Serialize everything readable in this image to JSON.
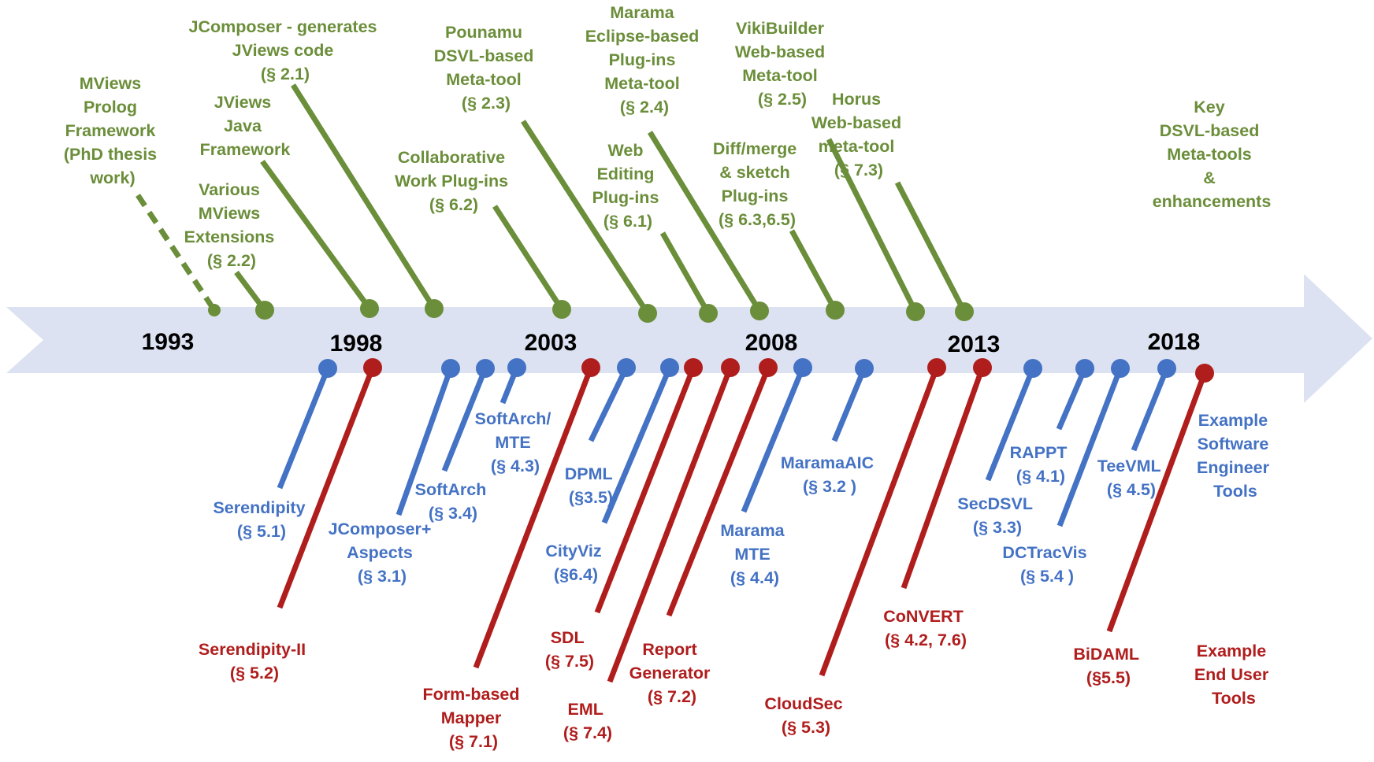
{
  "colors": {
    "green": "#6b8e3a",
    "blue": "#4472c4",
    "red": "#b01d1d",
    "arrow": "#dce2f1"
  },
  "years": [
    "1993",
    "1998",
    "2003",
    "2008",
    "2013",
    "2018"
  ],
  "green": [
    [
      "MViews",
      "Prolog",
      "Framework",
      "(PhD thesis",
      "work)"
    ],
    [
      "Various",
      "MViews",
      "Extensions",
      "(§ 2.2)"
    ],
    [
      "JViews",
      "Java",
      "Framework"
    ],
    [
      "JComposer - generates",
      "JViews code",
      "(§ 2.1)"
    ],
    [
      "Collaborative",
      "Work Plug-ins",
      "(§ 6.2)"
    ],
    [
      "Pounamu",
      "DSVL-based",
      "Meta-tool",
      "(§ 2.3)"
    ],
    [
      "Web",
      "Editing",
      "Plug-ins",
      "(§ 6.1)"
    ],
    [
      "Marama",
      "Eclipse-based",
      "Plug-ins",
      "Meta-tool",
      "(§ 2.4)"
    ],
    [
      "Diff/merge",
      "& sketch",
      "Plug-ins",
      "(§ 6.3,6.5)"
    ],
    [
      "VikiBuilder",
      "Web-based",
      "Meta-tool",
      "(§ 2.5)"
    ],
    [
      "Horus",
      "Web-based",
      "meta-tool",
      "(§ 7.3)"
    ]
  ],
  "blue": [
    [
      "Serendipity",
      "(§ 5.1)"
    ],
    [
      "JComposer+",
      "Aspects",
      "(§ 3.1)"
    ],
    [
      "SoftArch",
      "(§ 3.4)"
    ],
    [
      "SoftArch/",
      "MTE",
      "(§ 4.3)"
    ],
    [
      "DPML",
      "(§3.5)"
    ],
    [
      "CityViz",
      "(§6.4)"
    ],
    [
      "Marama",
      "MTE",
      "(§ 4.4)"
    ],
    [
      "MaramaAIC",
      "(§ 3.2 )"
    ],
    [
      "SecDSVL",
      "(§ 3.3)"
    ],
    [
      "RAPPT",
      "(§ 4.1)"
    ],
    [
      "DCTracVis",
      "(§ 5.4 )"
    ],
    [
      "TeeVML",
      "(§ 4.5)"
    ]
  ],
  "red": [
    [
      "Serendipity-II",
      "(§ 5.2)"
    ],
    [
      "Form-based",
      "Mapper",
      "(§ 7.1)"
    ],
    [
      "SDL",
      "(§ 7.5)"
    ],
    [
      "EML",
      "(§ 7.4)"
    ],
    [
      "Report",
      "Generator",
      "(§ 7.2)"
    ],
    [
      "CloudSec",
      "(§ 5.3)"
    ],
    [
      "CoNVERT",
      "(§ 4.2, 7.6)"
    ],
    [
      "BiDAML",
      "(§5.5)"
    ]
  ],
  "legend": {
    "green": [
      "Key",
      "DSVL-based",
      "Meta-tools",
      "&",
      "enhancements"
    ],
    "blue": [
      "Example",
      "Software",
      "Engineer",
      "Tools"
    ],
    "red": [
      "Example",
      "End User",
      "Tools"
    ]
  }
}
